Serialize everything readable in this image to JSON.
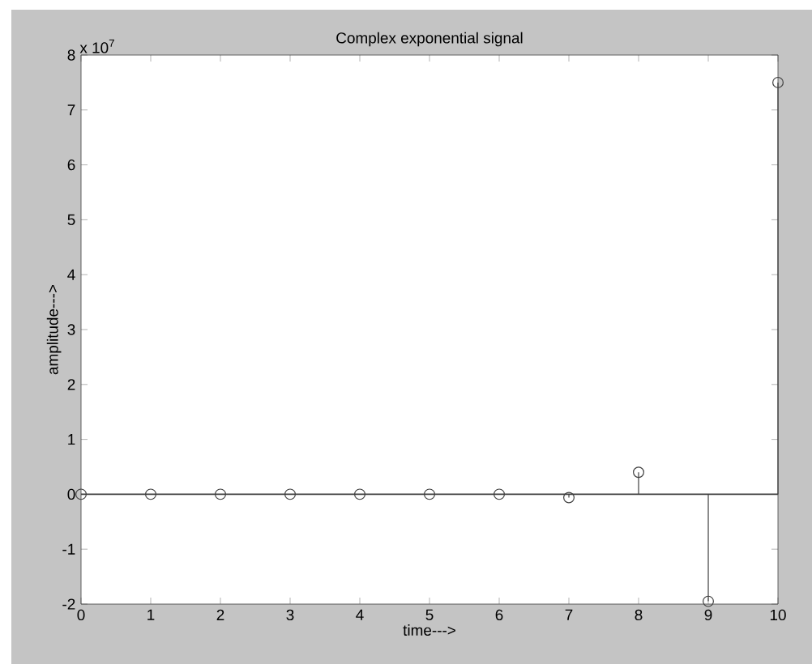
{
  "chart_data": {
    "type": "lollipop",
    "title": "Complex exponential signal",
    "xlabel": "time--->",
    "ylabel": "amplitude--->",
    "x": [
      0,
      1,
      2,
      3,
      4,
      5,
      6,
      7,
      8,
      9,
      10
    ],
    "series": [
      {
        "color": "#404040",
        "values": [
          0,
          0,
          0,
          0,
          0,
          0,
          0,
          -0.06,
          0.4,
          -1.95,
          7.5
        ]
      }
    ],
    "xlim": [
      0,
      10
    ],
    "xticks": [
      0,
      1,
      2,
      3,
      4,
      5,
      6,
      7,
      8,
      9,
      10
    ],
    "ylim": [
      -2,
      8
    ],
    "yticks": [
      -2,
      -1,
      0,
      1,
      2,
      3,
      4,
      5,
      6,
      7,
      8
    ],
    "ref_lines": [
      {
        "axis": "y",
        "value": 0
      }
    ],
    "annotations": [
      "x 10$^{7}$"
    ],
    "marker": "circle"
  }
}
